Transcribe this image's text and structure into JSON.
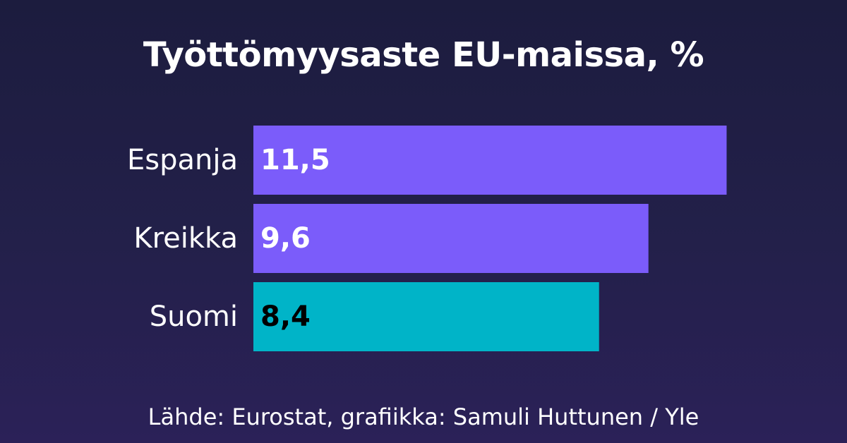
{
  "chart_data": {
    "type": "bar",
    "orientation": "horizontal",
    "title": "Työttömyysaste EU-maissa, %",
    "categories": [
      "Espanja",
      "Kreikka",
      "Suomi"
    ],
    "values": [
      11.5,
      9.6,
      8.4
    ],
    "value_labels": [
      "11,5",
      "9,6",
      "8,4"
    ],
    "bar_colors": [
      "#7b5cfa",
      "#7b5cfa",
      "#00b4c8"
    ],
    "value_label_colors": [
      "#ffffff",
      "#ffffff",
      "#000000"
    ],
    "xlabel": "",
    "ylabel": "",
    "grid": false,
    "legend": "none"
  },
  "source": "Lähde: Eurostat, grafiikka: Samuli Huttunen / Yle"
}
